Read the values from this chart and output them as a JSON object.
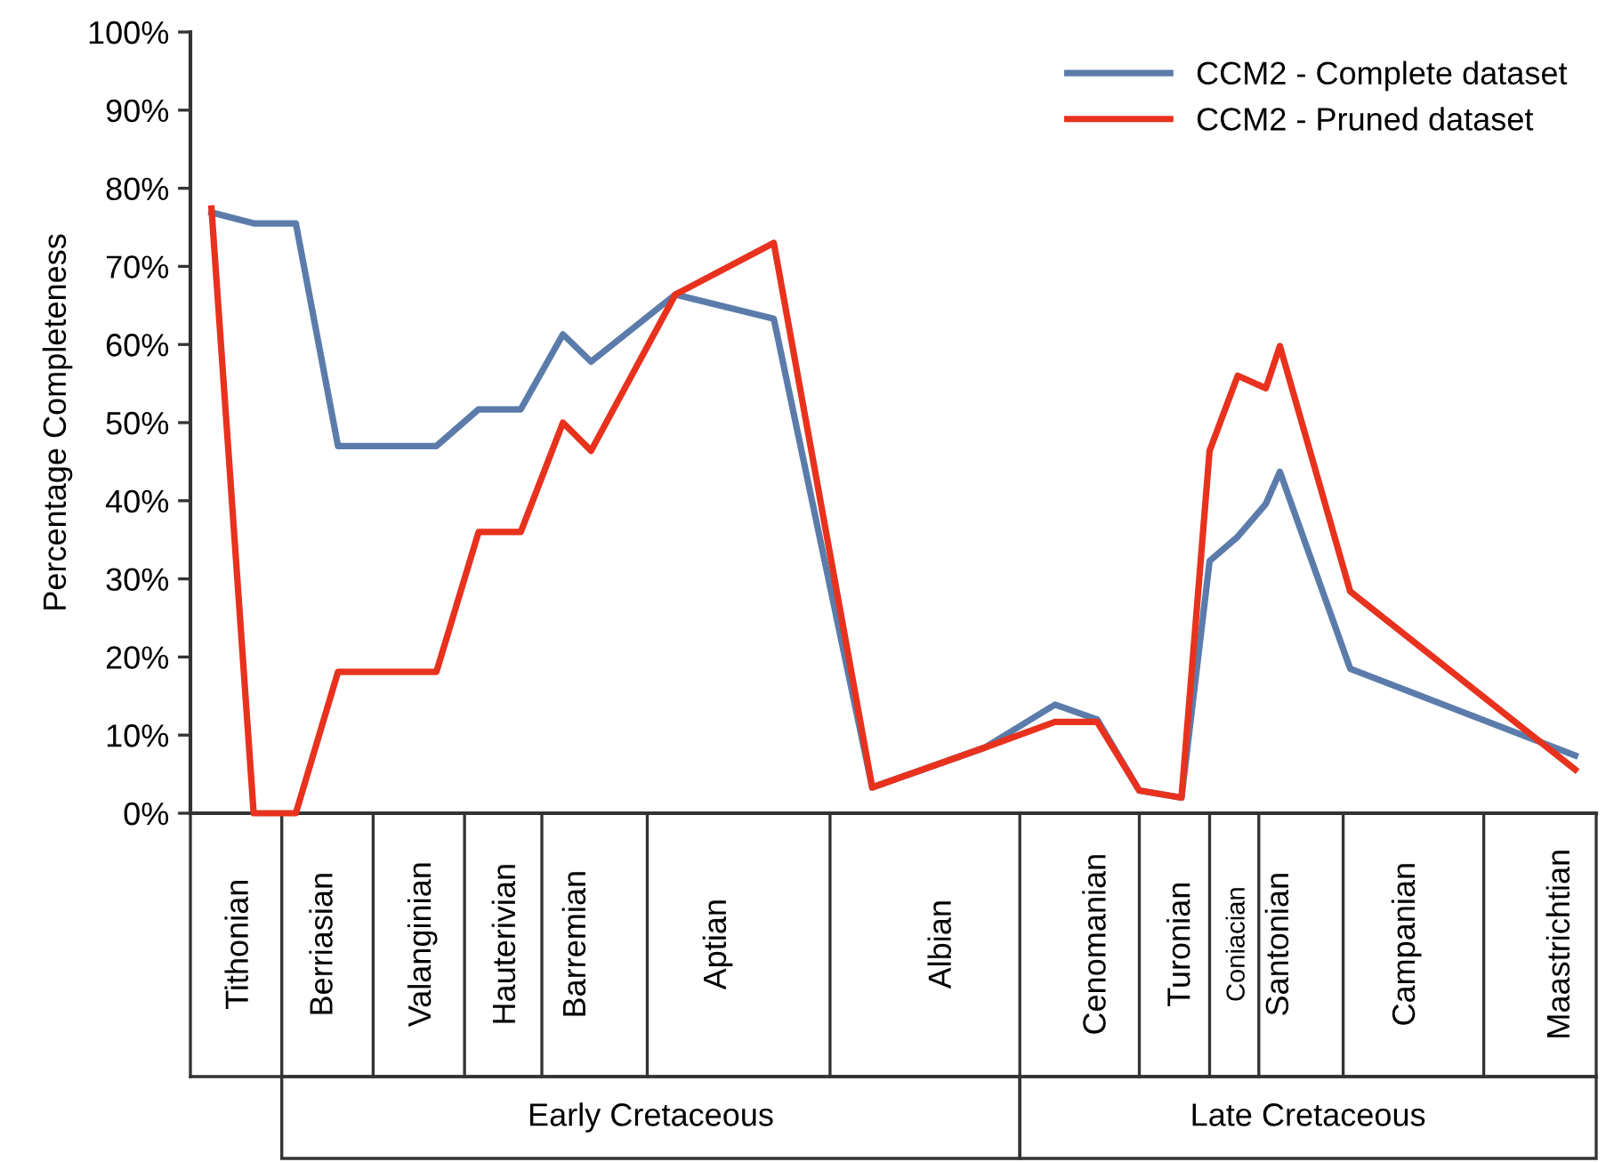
{
  "chart_data": {
    "type": "line",
    "ylabel": "Percentage Completeness",
    "ylim": [
      0,
      100
    ],
    "yticks": [
      {
        "value": 0,
        "label": "0%"
      },
      {
        "value": 10,
        "label": "10%"
      },
      {
        "value": 20,
        "label": "20%"
      },
      {
        "value": 30,
        "label": "30%"
      },
      {
        "value": 40,
        "label": "40%"
      },
      {
        "value": 50,
        "label": "50%"
      },
      {
        "value": 60,
        "label": "60%"
      },
      {
        "value": 70,
        "label": "70%"
      },
      {
        "value": 80,
        "label": "80%"
      },
      {
        "value": 90,
        "label": "90%"
      },
      {
        "value": 100,
        "label": "100%"
      }
    ],
    "categories": [
      null,
      null,
      null,
      "Tithonian",
      null,
      null,
      null,
      null,
      null,
      "Berriasian",
      null,
      null,
      null,
      null,
      null,
      null,
      "Valanginian",
      null,
      null,
      null,
      null,
      null,
      "Hauterivian",
      null,
      null,
      null,
      null,
      "Barremian",
      null,
      null,
      null,
      null,
      null,
      null,
      null,
      null,
      null,
      "Aptian",
      null,
      null,
      null,
      null,
      null,
      null,
      null,
      null,
      null,
      null,
      null,
      null,
      null,
      null,
      null,
      "Albian",
      null,
      null,
      null,
      null,
      null,
      null,
      null,
      null,
      null,
      null,
      "Cenomanian",
      null,
      null,
      null,
      null,
      null,
      "Turonian",
      null,
      null,
      null,
      "Coniacian",
      null,
      null,
      "Santonian",
      null,
      null,
      null,
      null,
      null,
      null,
      null,
      null,
      "Campanian",
      null,
      null,
      null,
      null,
      null,
      null,
      null,
      null,
      null,
      null,
      "Maastrichtian",
      null,
      null
    ],
    "annotations": [
      "Early Cretaceous",
      "Late Cretaceous"
    ],
    "series": [
      {
        "name": "CCM2 - Complete dataset",
        "color": "#5b7cab",
        "values": [
          null,
          76.9,
          null,
          null,
          75.5,
          null,
          null,
          75.5,
          null,
          null,
          47.0,
          null,
          null,
          null,
          null,
          null,
          null,
          47.0,
          null,
          null,
          51.7,
          null,
          null,
          51.7,
          null,
          null,
          61.3,
          null,
          57.8,
          null,
          null,
          null,
          null,
          null,
          66.4,
          null,
          null,
          null,
          null,
          null,
          null,
          63.3,
          null,
          null,
          null,
          null,
          null,
          null,
          3.3,
          null,
          null,
          null,
          null,
          null,
          null,
          null,
          8.4,
          null,
          null,
          null,
          null,
          13.9,
          null,
          null,
          12.0,
          null,
          null,
          2.9,
          null,
          null,
          2.0,
          null,
          32.3,
          null,
          35.4,
          null,
          39.6,
          43.7,
          null,
          null,
          null,
          null,
          18.5,
          null,
          null,
          null,
          null,
          null,
          null,
          null,
          null,
          null,
          null,
          null,
          null,
          null,
          null,
          null,
          7.4,
          null
        ]
      },
      {
        "name": "CCM2 - Pruned dataset",
        "color": "#e8321e",
        "values": [
          null,
          77.4,
          null,
          null,
          0,
          null,
          null,
          0,
          null,
          null,
          18.1,
          null,
          null,
          null,
          null,
          null,
          null,
          18.1,
          null,
          null,
          36.0,
          null,
          null,
          36.0,
          null,
          null,
          50.0,
          null,
          46.4,
          null,
          null,
          null,
          null,
          null,
          66.4,
          null,
          null,
          null,
          null,
          null,
          null,
          73.0,
          null,
          null,
          null,
          null,
          null,
          null,
          3.3,
          null,
          null,
          null,
          null,
          null,
          null,
          null,
          8.4,
          null,
          null,
          null,
          null,
          11.7,
          null,
          null,
          11.7,
          null,
          null,
          2.9,
          null,
          null,
          2.0,
          null,
          46.4,
          null,
          56.0,
          null,
          54.4,
          59.8,
          null,
          null,
          null,
          null,
          28.4,
          null,
          null,
          null,
          null,
          null,
          null,
          null,
          null,
          null,
          null,
          null,
          null,
          null,
          null,
          null,
          5.6,
          null
        ]
      }
    ],
    "legend": "top right",
    "grid": false,
    "marker": "none",
    "line_style": "solid"
  }
}
